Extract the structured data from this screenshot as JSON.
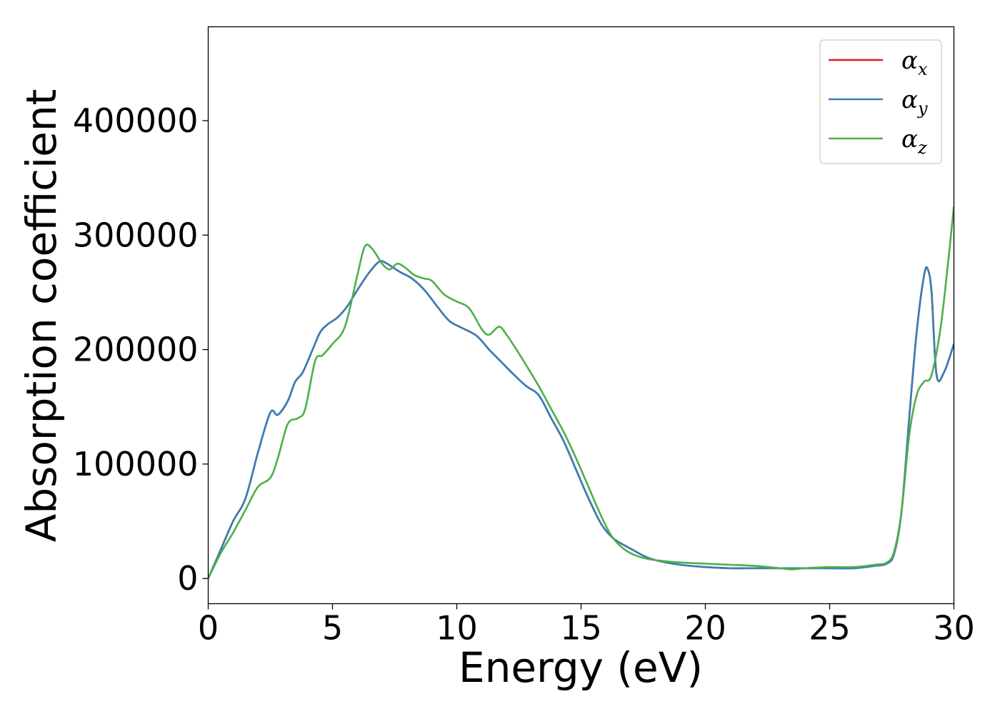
{
  "chart_data": {
    "type": "line",
    "title": "",
    "xlabel": "Energy (eV)",
    "ylabel": "Absorption coefficient",
    "xlim": [
      0,
      30
    ],
    "ylim": [
      -22000,
      482000
    ],
    "xticks": [
      0,
      5,
      10,
      15,
      20,
      25,
      30
    ],
    "xtick_labels": [
      "0",
      "5",
      "10",
      "15",
      "20",
      "25",
      "30"
    ],
    "yticks": [
      0,
      100000,
      200000,
      300000,
      400000
    ],
    "ytick_labels": [
      "0",
      "100000",
      "200000",
      "300000",
      "400000"
    ],
    "grid": false,
    "legend_position": "top-right",
    "series": [
      {
        "name": "α_x",
        "legend_symbol": "α",
        "legend_subscript": "x",
        "color": "#e41a1c",
        "x": [
          0,
          0.5,
          1.0,
          1.5,
          2.0,
          2.5,
          2.8,
          3.2,
          3.5,
          3.8,
          4.2,
          4.5,
          4.8,
          5.2,
          5.6,
          6.0,
          6.5,
          6.9,
          7.2,
          7.7,
          8.2,
          8.7,
          9.2,
          9.7,
          10.2,
          10.8,
          11.3,
          11.8,
          12.3,
          12.8,
          13.3,
          13.8,
          14.3,
          14.8,
          15.3,
          15.8,
          16.2,
          16.5,
          17.0,
          17.5,
          18.0,
          19.0,
          20.0,
          21.0,
          22.0,
          23.0,
          24.0,
          25.0,
          26.0,
          26.8,
          27.3,
          27.6,
          27.9,
          28.2,
          28.5,
          28.8,
          28.95,
          29.1,
          29.3,
          29.6,
          30.0
        ],
        "values": [
          0,
          25000,
          50000,
          70000,
          110000,
          145000,
          143000,
          155000,
          172000,
          180000,
          200000,
          215000,
          222000,
          228000,
          238000,
          252000,
          268000,
          277000,
          275000,
          268000,
          262000,
          252000,
          238000,
          225000,
          219000,
          212000,
          200000,
          189000,
          178000,
          168000,
          160000,
          140000,
          120000,
          95000,
          70000,
          48000,
          37000,
          32000,
          26000,
          20000,
          16000,
          12000,
          10000,
          9000,
          9000,
          9000,
          9000,
          9000,
          9000,
          11000,
          13000,
          22000,
          60000,
          140000,
          215000,
          265000,
          270000,
          250000,
          178000,
          180000,
          205000
        ]
      },
      {
        "name": "α_y",
        "legend_symbol": "α",
        "legend_subscript": "y",
        "color": "#377eb8",
        "x": [
          0,
          0.5,
          1.0,
          1.5,
          2.0,
          2.5,
          2.8,
          3.2,
          3.5,
          3.8,
          4.2,
          4.5,
          4.8,
          5.2,
          5.6,
          6.0,
          6.5,
          6.9,
          7.2,
          7.7,
          8.2,
          8.7,
          9.2,
          9.7,
          10.2,
          10.8,
          11.3,
          11.8,
          12.3,
          12.8,
          13.3,
          13.8,
          14.3,
          14.8,
          15.3,
          15.8,
          16.2,
          16.5,
          17.0,
          17.5,
          18.0,
          19.0,
          20.0,
          21.0,
          22.0,
          23.0,
          24.0,
          25.0,
          26.0,
          26.8,
          27.3,
          27.6,
          27.9,
          28.2,
          28.5,
          28.8,
          28.95,
          29.1,
          29.3,
          29.6,
          30.0
        ],
        "values": [
          0,
          25000,
          50000,
          70000,
          110000,
          145000,
          143000,
          155000,
          172000,
          180000,
          200000,
          215000,
          222000,
          228000,
          238000,
          252000,
          268000,
          277000,
          275000,
          268000,
          262000,
          252000,
          238000,
          225000,
          219000,
          212000,
          200000,
          189000,
          178000,
          168000,
          160000,
          140000,
          120000,
          95000,
          70000,
          48000,
          37000,
          32000,
          26000,
          20000,
          16000,
          12000,
          10000,
          9000,
          9000,
          9000,
          9000,
          9000,
          9000,
          11000,
          13000,
          22000,
          60000,
          140000,
          215000,
          265000,
          270000,
          250000,
          178000,
          180000,
          205000
        ]
      },
      {
        "name": "α_z",
        "legend_symbol": "α",
        "legend_subscript": "z",
        "color": "#4daf4a",
        "x": [
          0,
          0.5,
          1.0,
          1.5,
          2.0,
          2.5,
          2.8,
          3.2,
          3.6,
          3.9,
          4.3,
          4.6,
          5.0,
          5.5,
          6.0,
          6.3,
          6.6,
          7.0,
          7.3,
          7.6,
          7.9,
          8.3,
          8.7,
          9.0,
          9.5,
          10.0,
          10.5,
          11.0,
          11.3,
          11.7,
          12.0,
          12.4,
          12.8,
          13.3,
          13.8,
          14.3,
          14.8,
          15.3,
          15.8,
          16.2,
          16.6,
          17.0,
          17.5,
          18.0,
          19.0,
          20.0,
          21.0,
          22.0,
          23.0,
          23.5,
          24.0,
          25.0,
          26.0,
          26.8,
          27.3,
          27.6,
          27.9,
          28.2,
          28.5,
          28.8,
          29.1,
          29.5,
          30.0
        ],
        "values": [
          0,
          22000,
          40000,
          60000,
          80000,
          88000,
          105000,
          135000,
          140000,
          148000,
          190000,
          195000,
          205000,
          220000,
          265000,
          290000,
          288000,
          275000,
          270000,
          275000,
          272000,
          265000,
          262000,
          260000,
          248000,
          242000,
          236000,
          218000,
          213000,
          220000,
          213000,
          200000,
          186000,
          168000,
          148000,
          128000,
          105000,
          80000,
          55000,
          38000,
          28000,
          22000,
          18000,
          16000,
          14000,
          13000,
          12000,
          11000,
          9000,
          8000,
          9000,
          10000,
          10000,
          12000,
          14000,
          24000,
          60000,
          125000,
          160000,
          172000,
          178000,
          225000,
          325000
        ]
      }
    ]
  }
}
